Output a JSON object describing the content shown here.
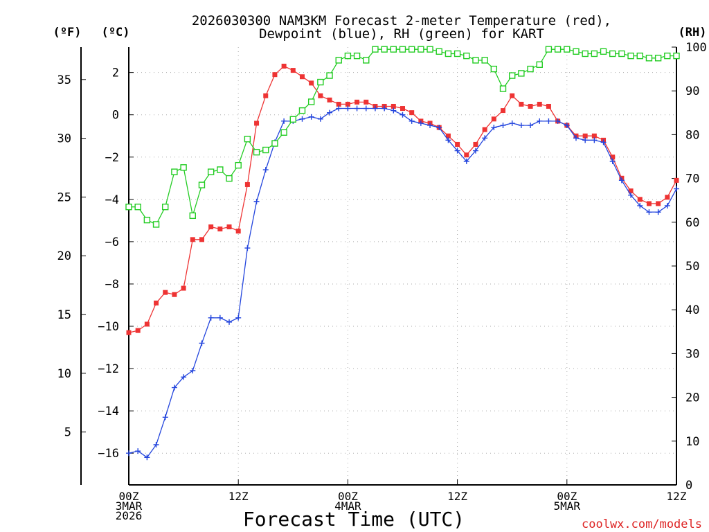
{
  "chart_data": {
    "type": "line",
    "title_line1": "2026030300 NAM3KM Forecast 2-meter Temperature (red),",
    "title_line2": "Dewpoint (blue), RH (green) for KART",
    "xlabel": "Forecast Time (UTC)",
    "unit_label_f": "(ºF)",
    "unit_label_c": "(ºC)",
    "unit_label_rh": "(RH)",
    "credit": "coolwx.com/models",
    "xlim": [
      0,
      60
    ],
    "ylim_c": [
      -17.5,
      3.2
    ],
    "ylim_rh": [
      0,
      100
    ],
    "left_ticks_c": [
      2,
      0,
      -2,
      -4,
      -6,
      -8,
      -10,
      -12,
      -14,
      -16
    ],
    "left_tick_labels_c": [
      "2",
      "0",
      "−2",
      "−4",
      "−6",
      "−8",
      "−10",
      "−12",
      "−14",
      "−16"
    ],
    "ticks_f": [
      5,
      10,
      15,
      20,
      25,
      30,
      35
    ],
    "tick_labels_f": [
      "5",
      "10",
      "15",
      "20",
      "25",
      "30",
      "35"
    ],
    "ticks_rh": [
      0,
      10,
      20,
      30,
      40,
      50,
      60,
      70,
      80,
      90,
      100
    ],
    "tick_labels_rh": [
      "0",
      "10",
      "20",
      "30",
      "40",
      "50",
      "60",
      "70",
      "80",
      "90",
      "100"
    ],
    "x_ticks": [
      {
        "hour": 0,
        "lines": [
          "00Z",
          "3MAR",
          "2026"
        ]
      },
      {
        "hour": 12,
        "lines": [
          "12Z"
        ]
      },
      {
        "hour": 24,
        "lines": [
          "00Z",
          "4MAR"
        ]
      },
      {
        "hour": 36,
        "lines": [
          "12Z"
        ]
      },
      {
        "hour": 48,
        "lines": [
          "00Z",
          "5MAR"
        ]
      },
      {
        "hour": 60,
        "lines": [
          "12Z"
        ]
      }
    ],
    "series": [
      {
        "name": "Temperature",
        "unit": "C",
        "color": "#ee3333",
        "marker": "filled-square",
        "hours": [
          0,
          1,
          2,
          3,
          4,
          5,
          6,
          7,
          8,
          9,
          10,
          11,
          12,
          13,
          14,
          15,
          16,
          17,
          18,
          19,
          20,
          21,
          22,
          23,
          24,
          25,
          26,
          27,
          28,
          29,
          30,
          31,
          32,
          33,
          34,
          35,
          36,
          37,
          38,
          39,
          40,
          41,
          42,
          43,
          44,
          45,
          46,
          47,
          48,
          49,
          50,
          51,
          52,
          53,
          54,
          55,
          56,
          57,
          58,
          59,
          60
        ],
        "values": [
          -10.3,
          -10.2,
          -9.9,
          -8.9,
          -8.4,
          -8.5,
          -8.2,
          -5.9,
          -5.9,
          -5.3,
          -5.4,
          -5.3,
          -5.5,
          -3.3,
          -0.4,
          0.9,
          1.9,
          2.3,
          2.1,
          1.8,
          1.5,
          0.9,
          0.7,
          0.5,
          0.5,
          0.6,
          0.6,
          0.4,
          0.4,
          0.4,
          0.3,
          0.1,
          -0.3,
          -0.4,
          -0.6,
          -1.0,
          -1.4,
          -1.9,
          -1.4,
          -0.7,
          -0.2,
          0.2,
          0.9,
          0.5,
          0.4,
          0.5,
          0.4,
          -0.3,
          -0.5,
          -1.0,
          -1.0,
          -1.0,
          -1.2,
          -2.0,
          -3.0,
          -3.6,
          -4.0,
          -4.2,
          -4.2,
          -3.9,
          -3.1
        ]
      },
      {
        "name": "Dewpoint",
        "unit": "C",
        "color": "#2244dd",
        "marker": "plus",
        "hours": [
          0,
          1,
          2,
          3,
          4,
          5,
          6,
          7,
          8,
          9,
          10,
          11,
          12,
          13,
          14,
          15,
          16,
          17,
          18,
          19,
          20,
          21,
          22,
          23,
          24,
          25,
          26,
          27,
          28,
          29,
          30,
          31,
          32,
          33,
          34,
          35,
          36,
          37,
          38,
          39,
          40,
          41,
          42,
          43,
          44,
          45,
          46,
          47,
          48,
          49,
          50,
          51,
          52,
          53,
          54,
          55,
          56,
          57,
          58,
          59,
          60
        ],
        "values": [
          -16.0,
          -15.9,
          -16.2,
          -15.6,
          -14.3,
          -12.9,
          -12.4,
          -12.1,
          -10.8,
          -9.6,
          -9.6,
          -9.8,
          -9.6,
          -6.3,
          -4.1,
          -2.6,
          -1.3,
          -0.3,
          -0.3,
          -0.2,
          -0.1,
          -0.2,
          0.1,
          0.3,
          0.3,
          0.3,
          0.3,
          0.3,
          0.3,
          0.2,
          0.0,
          -0.3,
          -0.4,
          -0.5,
          -0.6,
          -1.2,
          -1.7,
          -2.2,
          -1.7,
          -1.1,
          -0.6,
          -0.5,
          -0.4,
          -0.5,
          -0.5,
          -0.3,
          -0.3,
          -0.3,
          -0.5,
          -1.1,
          -1.2,
          -1.2,
          -1.3,
          -2.2,
          -3.1,
          -3.8,
          -4.3,
          -4.6,
          -4.6,
          -4.3,
          -3.5
        ]
      },
      {
        "name": "RH",
        "unit": "%",
        "color": "#22cc22",
        "marker": "open-square",
        "hours": [
          0,
          1,
          2,
          3,
          4,
          5,
          6,
          7,
          8,
          9,
          10,
          11,
          12,
          13,
          14,
          15,
          16,
          17,
          18,
          19,
          20,
          21,
          22,
          23,
          24,
          25,
          26,
          27,
          28,
          29,
          30,
          31,
          32,
          33,
          34,
          35,
          36,
          37,
          38,
          39,
          40,
          41,
          42,
          43,
          44,
          45,
          46,
          47,
          48,
          49,
          50,
          51,
          52,
          53,
          54,
          55,
          56,
          57,
          58,
          59,
          60
        ],
        "values": [
          63.5,
          63.5,
          60.5,
          59.5,
          63.5,
          71.5,
          72.5,
          61.5,
          68.5,
          71.5,
          72,
          70,
          73,
          79,
          76,
          76.5,
          78,
          80.5,
          83.5,
          85.5,
          87.5,
          92,
          93.5,
          97,
          98,
          98,
          97,
          99.5,
          99.5,
          99.5,
          99.5,
          99.5,
          99.5,
          99.5,
          99,
          98.5,
          98.5,
          98,
          97,
          97,
          95,
          90.5,
          93.5,
          94,
          95,
          96,
          99.5,
          99.5,
          99.5,
          99,
          98.5,
          98.5,
          99,
          98.5,
          98.5,
          98,
          98,
          97.5,
          97.5,
          98,
          98
        ]
      }
    ]
  }
}
